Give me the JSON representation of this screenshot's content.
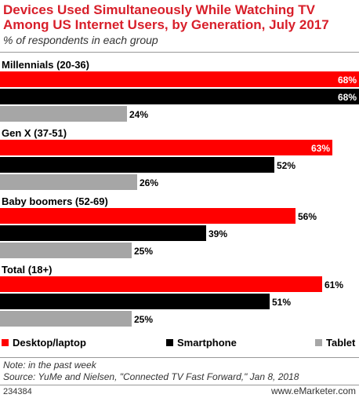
{
  "title": "Devices Used Simultaneously While Watching TV Among US Internet Users, by Generation, July 2017",
  "subtitle": "% of respondents in each group",
  "footer": {
    "note": "Note: in the past week",
    "source": "Source: YuMe and Nielsen, \"Connected TV Fast Forward,\" Jan 8, 2018",
    "id": "234384",
    "brand": "www.eMarketer.com"
  },
  "colors": {
    "title": "#d81f2a",
    "desktop": "#ff0000",
    "smartphone": "#000000",
    "tablet": "#a6a6a6"
  },
  "chart_data": {
    "type": "bar",
    "orientation": "horizontal",
    "title": "Devices Used Simultaneously While Watching TV Among US Internet Users, by Generation, July 2017",
    "subtitle": "% of respondents in each group",
    "categories": [
      "Millennials (20-36)",
      "Gen X (37-51)",
      "Baby boomers (52-69)",
      "Total (18+)"
    ],
    "series": [
      {
        "name": "Desktop/laptop",
        "color": "#ff0000",
        "values": [
          68,
          63,
          56,
          61
        ],
        "labels": [
          "68%",
          "63%",
          "56%",
          "61%"
        ]
      },
      {
        "name": "Smartphone",
        "color": "#000000",
        "values": [
          68,
          52,
          39,
          51
        ],
        "labels": [
          "68%",
          "52%",
          "39%",
          "51%"
        ]
      },
      {
        "name": "Tablet",
        "color": "#a6a6a6",
        "values": [
          24,
          26,
          25,
          25
        ],
        "labels": [
          "24%",
          "26%",
          "25%",
          "25%"
        ]
      }
    ],
    "xlim": [
      0,
      68
    ],
    "grid": false,
    "legend": "bottom"
  }
}
